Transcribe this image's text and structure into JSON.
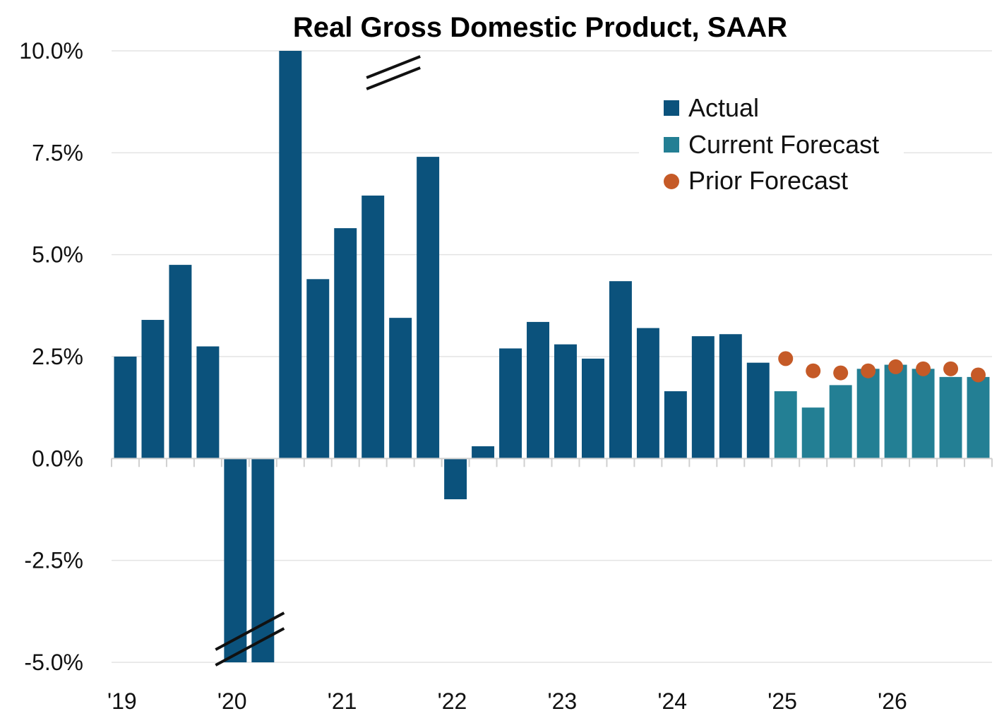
{
  "chart_data": {
    "type": "bar",
    "title": "Real Gross Domestic Product, SAAR",
    "xlabel": "",
    "ylabel": "",
    "ylim": [
      -5.0,
      10.0
    ],
    "yticks": [
      "10.0%",
      "7.5%",
      "5.0%",
      "2.5%",
      "0.0%",
      "-2.5%",
      "-5.0%"
    ],
    "ytick_values": [
      10.0,
      7.5,
      5.0,
      2.5,
      0.0,
      -2.5,
      -5.0
    ],
    "xtick_labels": [
      "'19",
      "'20",
      "'21",
      "'22",
      "'23",
      "'24",
      "'25",
      "'26"
    ],
    "grid": true,
    "legend_position": "top-right",
    "axis_break_bars": [
      10,
      4,
      5
    ],
    "series": [
      {
        "name": "Actual",
        "kind": "bar",
        "color": "#0b527c",
        "values": [
          2.5,
          3.4,
          4.75,
          2.75,
          -5.0,
          -5.0,
          10.0,
          4.4,
          5.65,
          6.45,
          3.45,
          7.4,
          -1.0,
          0.3,
          2.7,
          3.35,
          2.8,
          2.45,
          4.35,
          3.2,
          1.65,
          3.0,
          3.05,
          2.35
        ]
      },
      {
        "name": "Current Forecast",
        "kind": "bar",
        "color": "#237f94",
        "values": [
          1.65,
          1.25,
          1.8,
          2.2,
          2.3,
          2.2,
          2.0,
          2.0
        ]
      },
      {
        "name": "Prior Forecast",
        "kind": "dot",
        "color": "#c55a27",
        "values": [
          2.45,
          2.15,
          2.1,
          2.15,
          2.25,
          2.2,
          2.2,
          2.05
        ]
      }
    ]
  }
}
